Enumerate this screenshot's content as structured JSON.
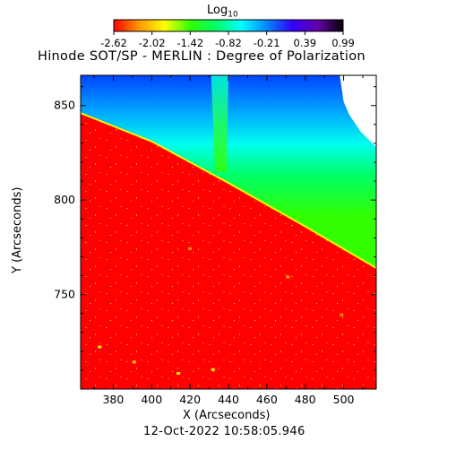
{
  "chart_data": {
    "type": "heatmap",
    "title": "Hinode SOT/SP - MERLIN : Degree of Polarization",
    "xlabel": "X (Arcseconds)",
    "ylabel": "Y (Arcseconds)",
    "timestamp": "12-Oct-2022 10:58:05.946",
    "colorbar": {
      "label": "Log",
      "label_sub": "10",
      "ticks": [
        "-2.62",
        "-2.02",
        "-1.42",
        "-0.82",
        "-0.21",
        "0.39",
        "0.99"
      ],
      "range": [
        -2.62,
        0.99
      ],
      "colors": [
        "#ff0000",
        "#ff9900",
        "#ffff00",
        "#33ff00",
        "#00ff66",
        "#00ffff",
        "#0088ff",
        "#3300ff",
        "#6600aa",
        "#000000"
      ]
    },
    "xlim": [
      363,
      517
    ],
    "ylim": [
      700,
      866
    ],
    "xticks": [
      "380",
      "400",
      "420",
      "440",
      "460",
      "480",
      "500"
    ],
    "yticks": [
      "750",
      "800",
      "850"
    ],
    "limb_boundary": [
      [
        363,
        846
      ],
      [
        400,
        831
      ],
      [
        440,
        809
      ],
      [
        480,
        786
      ],
      [
        517,
        764
      ]
    ],
    "regions": {
      "on_disk": "red (log DoP near -2.6)",
      "off_limb": "green (log DoP near -0.8)",
      "top_edge": "cyan to blue (log DoP near -0.2 to 0.4)"
    }
  }
}
